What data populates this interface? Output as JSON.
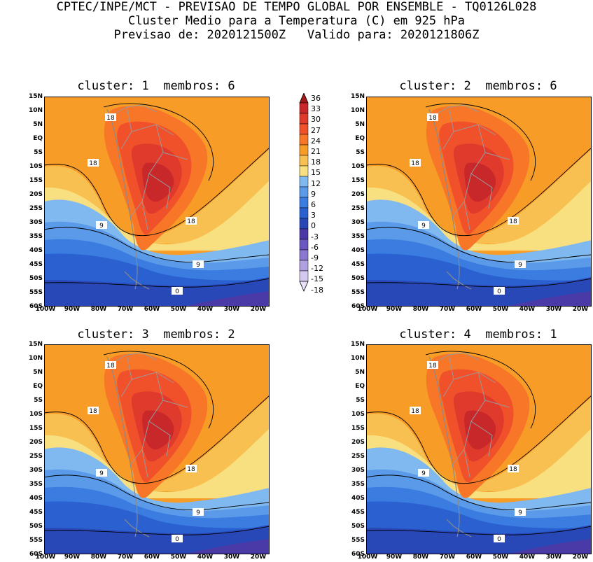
{
  "header": {
    "line1": "CPTEC/INPE/MCT - PREVISAO DE TEMPO GLOBAL POR ENSEMBLE - TQ0126L028",
    "line2": "Cluster Medio para a Temperatura (C) em 925 hPa",
    "line3": "Previsao de: 2020121500Z   Valido para: 2020121806Z"
  },
  "panels": [
    {
      "title": "cluster: 1  membros: 6"
    },
    {
      "title": "cluster: 2  membros: 6"
    },
    {
      "title": "cluster: 3  membros: 2"
    },
    {
      "title": "cluster: 4  membros: 1"
    }
  ],
  "axes": {
    "lat_labels": [
      "15N",
      "10N",
      "5N",
      "EQ",
      "5S",
      "10S",
      "15S",
      "20S",
      "25S",
      "30S",
      "35S",
      "40S",
      "45S",
      "50S",
      "55S",
      "60S"
    ],
    "lon_labels": [
      "100W",
      "90W",
      "80W",
      "70W",
      "60W",
      "50W",
      "40W",
      "30W",
      "20W"
    ]
  },
  "contour_labels": [
    "18",
    "18",
    "18",
    "9",
    "9",
    "0"
  ],
  "colorbar": {
    "levels": [
      "36",
      "33",
      "30",
      "27",
      "24",
      "21",
      "18",
      "15",
      "12",
      "9",
      "6",
      "3",
      "0",
      "-3",
      "-6",
      "-9",
      "-12",
      "-15",
      "-18"
    ],
    "colors": [
      "#a01818",
      "#c8282a",
      "#e03a2c",
      "#f0502a",
      "#f87628",
      "#f89c28",
      "#f8c050",
      "#f8e080",
      "#80b8f0",
      "#5a9ae8",
      "#3a7ce0",
      "#2a60d0",
      "#2848b8",
      "#4a3aa8",
      "#6a58c0",
      "#8a78d0",
      "#b0a0e0",
      "#d4c8f0",
      "#e8e0f8"
    ]
  }
}
